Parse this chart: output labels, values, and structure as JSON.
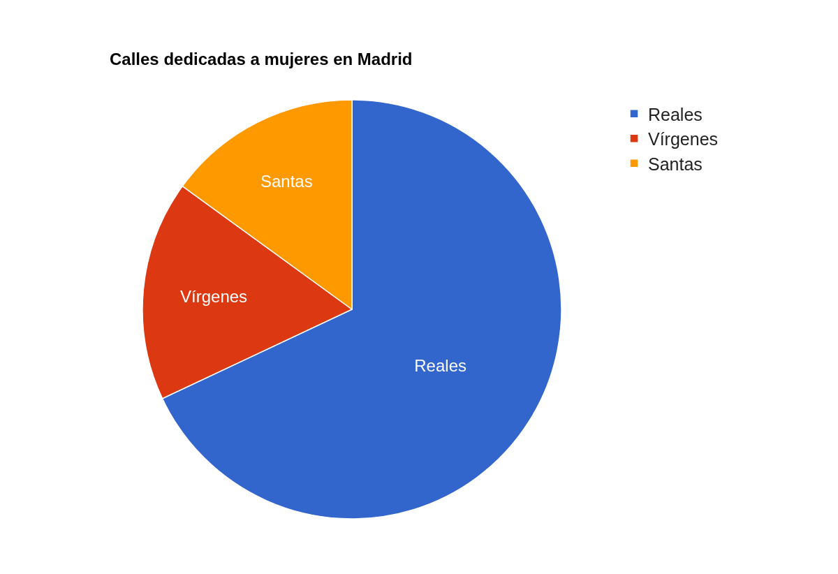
{
  "chart_data": {
    "type": "pie",
    "title": "Calles dedicadas a mujeres en Madrid",
    "categories": [
      "Reales",
      "Vírgenes",
      "Santas"
    ],
    "values": [
      68,
      17,
      15
    ],
    "colors": [
      "#3366cc",
      "#dc3912",
      "#ff9900"
    ],
    "legend": "top right"
  }
}
